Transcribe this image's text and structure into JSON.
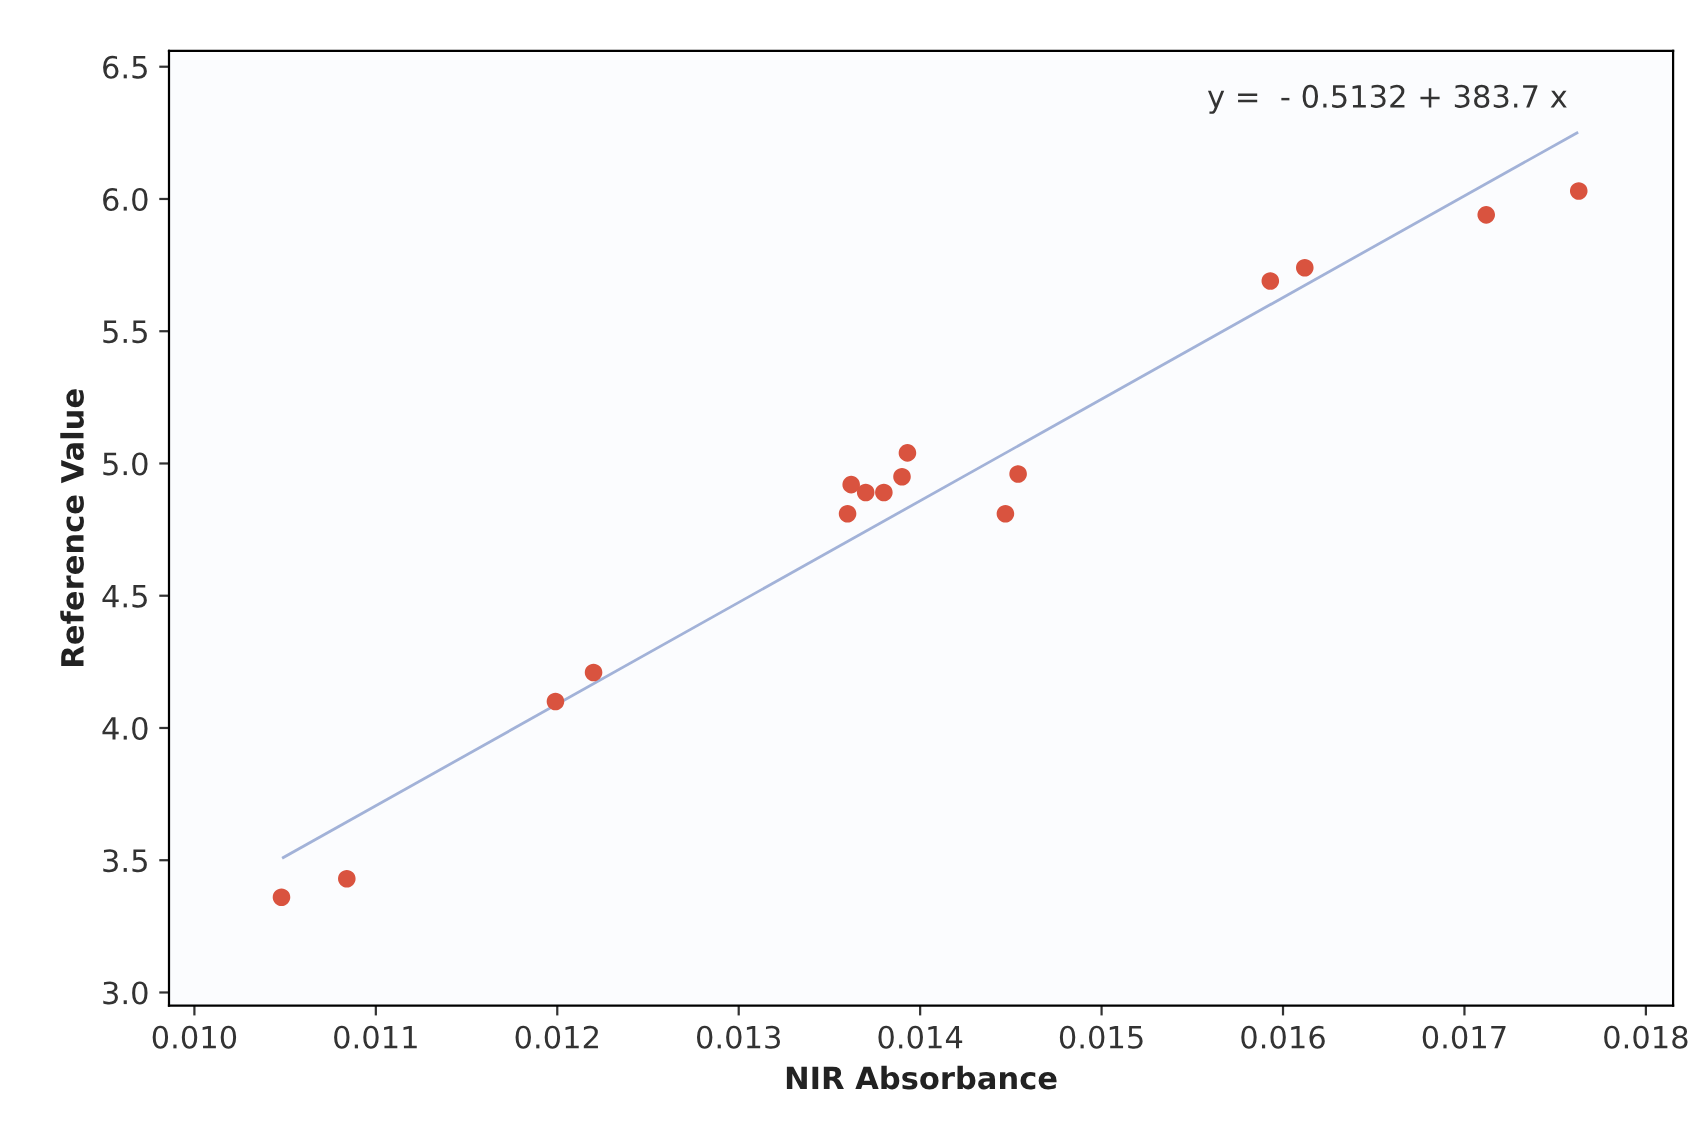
{
  "chart_data": {
    "type": "scatter",
    "xlabel": "NIR Absorbance",
    "ylabel": "Reference Value",
    "annotations": [
      "y =  - 0.5132 + 383.7 x"
    ],
    "xlim": [
      0.00986,
      0.01815
    ],
    "ylim": [
      2.95,
      6.56
    ],
    "xticks": [
      {
        "value": 0.01,
        "label": "0.010"
      },
      {
        "value": 0.011,
        "label": "0.011"
      },
      {
        "value": 0.012,
        "label": "0.012"
      },
      {
        "value": 0.013,
        "label": "0.013"
      },
      {
        "value": 0.014,
        "label": "0.014"
      },
      {
        "value": 0.015,
        "label": "0.015"
      },
      {
        "value": 0.016,
        "label": "0.016"
      },
      {
        "value": 0.017,
        "label": "0.017"
      },
      {
        "value": 0.018,
        "label": "0.018"
      }
    ],
    "yticks": [
      {
        "value": 3,
        "label": "3.0"
      },
      3.5,
      {
        "value": 4,
        "label": "4.0"
      },
      4.5,
      {
        "value": 5,
        "label": "5.0"
      },
      5.5,
      {
        "value": 6,
        "label": "6.0"
      },
      6.5
    ],
    "grid": false,
    "legend": false,
    "series": [
      {
        "marker": "circle",
        "color": "#d9533f",
        "x": [
          0.01048,
          0.01084,
          0.01199,
          0.0122,
          0.0136,
          0.01362,
          0.0137,
          0.0138,
          0.0139,
          0.01393,
          0.01447,
          0.01454,
          0.01593,
          0.01612,
          0.01712,
          0.01763
        ],
        "values": [
          3.36,
          3.43,
          4.1,
          4.21,
          4.81,
          4.92,
          4.89,
          4.89,
          4.95,
          5.04,
          4.81,
          4.96,
          5.69,
          5.74,
          5.94,
          6.03
        ]
      },
      {
        "type": "line",
        "color": "#a2b2d8",
        "x": [
          0.01049,
          0.01762
        ],
        "values": [
          3.51,
          6.25
        ]
      }
    ]
  }
}
